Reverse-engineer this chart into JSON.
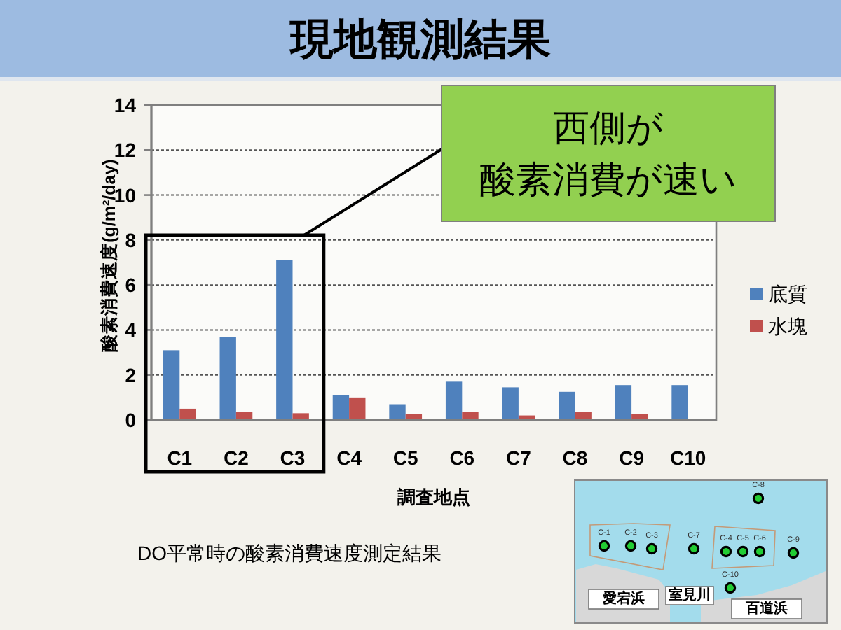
{
  "chart_data": {
    "type": "bar",
    "title": "現地観測結果",
    "xlabel": "調査地点",
    "ylabel": "酸素消費速度(g/m²/day)",
    "categories": [
      "C1",
      "C2",
      "C3",
      "C4",
      "C5",
      "C6",
      "C7",
      "C8",
      "C9",
      "C10"
    ],
    "series": [
      {
        "name": "底質",
        "color": "#4f81bd",
        "values": [
          3.1,
          3.7,
          7.1,
          1.1,
          0.7,
          1.7,
          1.45,
          1.25,
          1.55,
          1.55
        ]
      },
      {
        "name": "水塊",
        "color": "#c0504d",
        "values": [
          0.5,
          0.35,
          0.3,
          1.0,
          0.25,
          0.35,
          0.2,
          0.35,
          0.25,
          0.05
        ]
      }
    ],
    "ylim": [
      0,
      14
    ],
    "yticks": [
      0,
      2,
      4,
      6,
      8,
      10,
      12,
      14
    ],
    "grid": "y",
    "legend": "right",
    "annotations": [
      "西側が",
      "酸素消費が速い",
      "DO平常時の酸素消費速度測定結果",
      "愛宕浜",
      "室見川",
      "百道浜",
      "C-1",
      "C-2",
      "C-3",
      "C-4",
      "C-5",
      "C-6",
      "C-7",
      "C-8",
      "C-9",
      "C-10"
    ]
  }
}
